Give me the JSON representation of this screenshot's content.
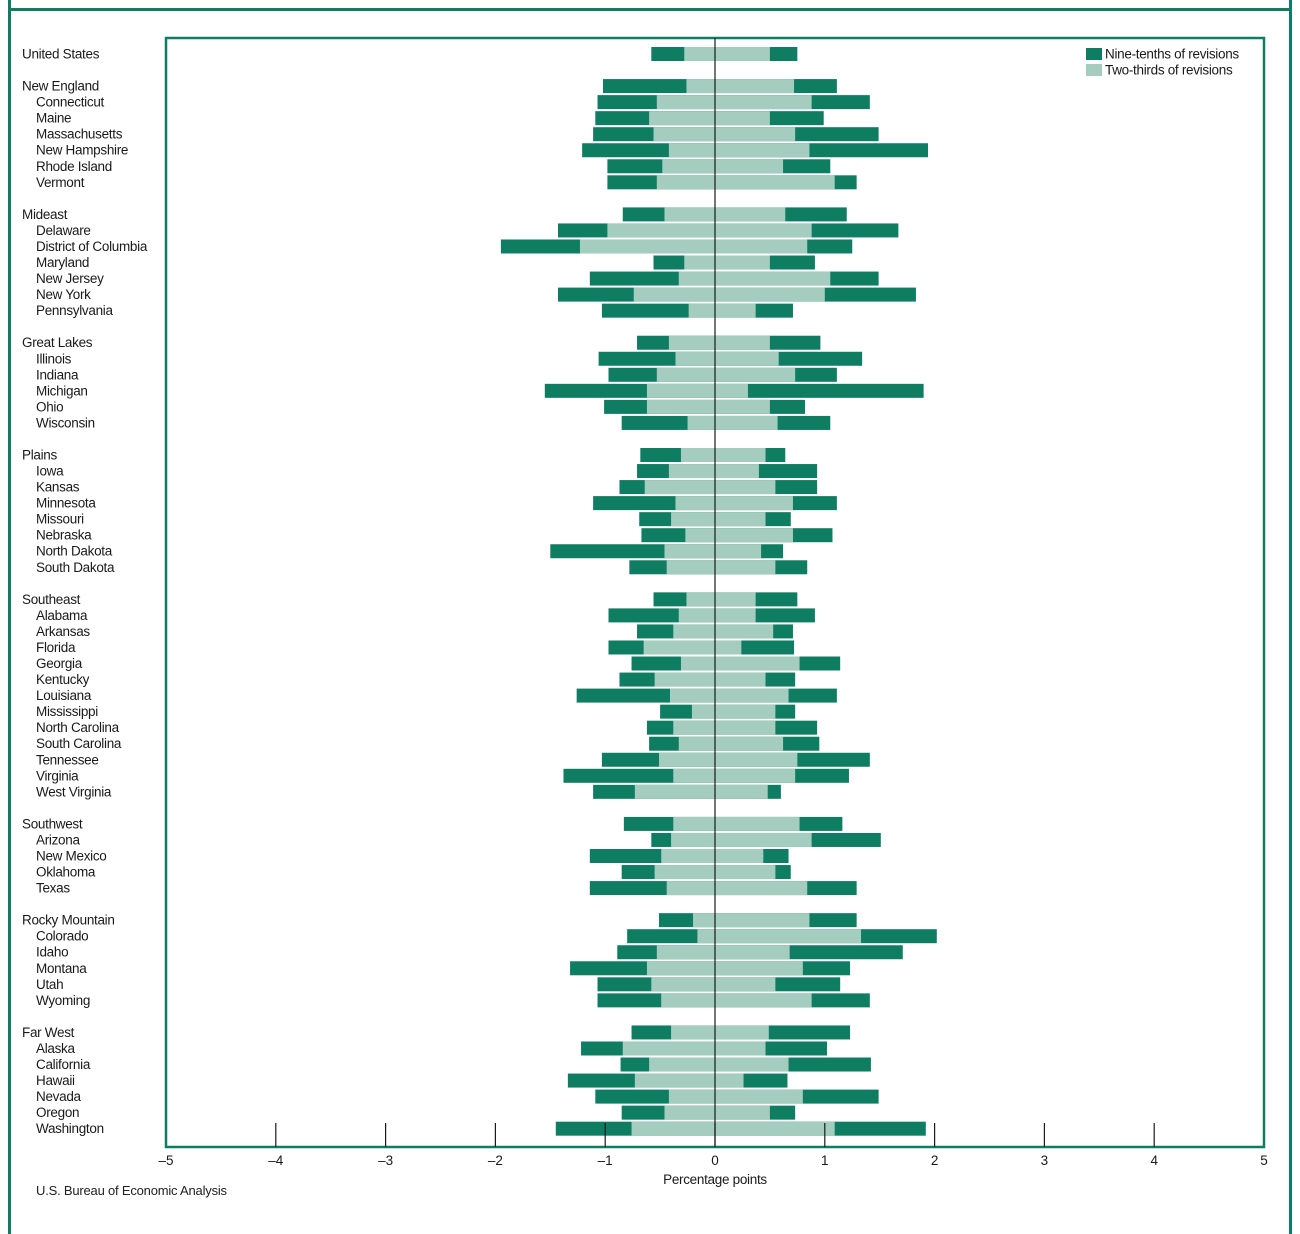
{
  "chart_data": {
    "type": "bar",
    "orientation": "horizontal",
    "stacked_symmetric": true,
    "xlabel": "Percentage points",
    "xlim": [
      -5,
      5
    ],
    "xticks": [
      -5,
      -4,
      -3,
      -2,
      -1,
      0,
      1,
      2,
      3,
      4,
      5
    ],
    "xtick_labels": [
      "–5",
      "–4",
      "–3",
      "–2",
      "–1",
      "0",
      "1",
      "2",
      "3",
      "4",
      "5"
    ],
    "legend_position": "top-right",
    "legend": [
      {
        "key": "nine_tenths",
        "label": "Nine-tenths of revisions",
        "color": "#0e7d62"
      },
      {
        "key": "two_thirds",
        "label": "Two-thirds of revisions",
        "color": "#a4cdbf"
      }
    ],
    "columns": [
      "label",
      "indent",
      "nine_tenths_low",
      "two_thirds_low",
      "two_thirds_high",
      "nine_tenths_high"
    ],
    "rows": [
      [
        "United States",
        0,
        -0.58,
        -0.28,
        0.5,
        0.75
      ],
      [
        "New England",
        0,
        -1.02,
        -0.26,
        0.72,
        1.11
      ],
      [
        "Connecticut",
        1,
        -1.07,
        -0.53,
        0.88,
        1.41
      ],
      [
        "Maine",
        1,
        -1.09,
        -0.6,
        0.5,
        0.99
      ],
      [
        "Massachusetts",
        1,
        -1.11,
        -0.56,
        0.73,
        1.49
      ],
      [
        "New Hampshire",
        1,
        -1.21,
        -0.42,
        0.86,
        1.94
      ],
      [
        "Rhode Island",
        1,
        -0.98,
        -0.48,
        0.62,
        1.05
      ],
      [
        "Vermont",
        1,
        -0.98,
        -0.53,
        1.09,
        1.29
      ],
      [
        "Mideast",
        0,
        -0.84,
        -0.46,
        0.64,
        1.2
      ],
      [
        "Delaware",
        1,
        -1.43,
        -0.98,
        0.88,
        1.67
      ],
      [
        "District of Columbia",
        1,
        -1.95,
        -1.23,
        0.84,
        1.25
      ],
      [
        "Maryland",
        1,
        -0.56,
        -0.28,
        0.5,
        0.91
      ],
      [
        "New Jersey",
        1,
        -1.14,
        -0.33,
        1.05,
        1.49
      ],
      [
        "New York",
        1,
        -1.43,
        -0.74,
        1.0,
        1.83
      ],
      [
        "Pennsylvania",
        1,
        -1.03,
        -0.24,
        0.37,
        0.71
      ],
      [
        "Great Lakes",
        0,
        -0.71,
        -0.42,
        0.5,
        0.96
      ],
      [
        "Illinois",
        1,
        -1.06,
        -0.36,
        0.58,
        1.34
      ],
      [
        "Indiana",
        1,
        -0.97,
        -0.53,
        0.73,
        1.11
      ],
      [
        "Michigan",
        1,
        -1.55,
        -0.62,
        0.3,
        1.9
      ],
      [
        "Ohio",
        1,
        -1.01,
        -0.62,
        0.5,
        0.82
      ],
      [
        "Wisconsin",
        1,
        -0.85,
        -0.25,
        0.57,
        1.05
      ],
      [
        "Plains",
        0,
        -0.68,
        -0.31,
        0.46,
        0.64
      ],
      [
        "Iowa",
        1,
        -0.71,
        -0.42,
        0.4,
        0.93
      ],
      [
        "Kansas",
        1,
        -0.87,
        -0.64,
        0.55,
        0.93
      ],
      [
        "Minnesota",
        1,
        -1.11,
        -0.36,
        0.71,
        1.11
      ],
      [
        "Missouri",
        1,
        -0.69,
        -0.4,
        0.46,
        0.69
      ],
      [
        "Nebraska",
        1,
        -0.67,
        -0.27,
        0.71,
        1.07
      ],
      [
        "North Dakota",
        1,
        -1.5,
        -0.46,
        0.42,
        0.62
      ],
      [
        "South Dakota",
        1,
        -0.78,
        -0.44,
        0.55,
        0.84
      ],
      [
        "Southeast",
        0,
        -0.56,
        -0.26,
        0.37,
        0.75
      ],
      [
        "Alabama",
        1,
        -0.97,
        -0.33,
        0.37,
        0.91
      ],
      [
        "Arkansas",
        1,
        -0.71,
        -0.38,
        0.53,
        0.71
      ],
      [
        "Florida",
        1,
        -0.97,
        -0.65,
        0.24,
        0.72
      ],
      [
        "Georgia",
        1,
        -0.76,
        -0.31,
        0.77,
        1.14
      ],
      [
        "Kentucky",
        1,
        -0.87,
        -0.55,
        0.46,
        0.73
      ],
      [
        "Louisiana",
        1,
        -1.26,
        -0.41,
        0.67,
        1.11
      ],
      [
        "Mississippi",
        1,
        -0.5,
        -0.21,
        0.55,
        0.73
      ],
      [
        "North Carolina",
        1,
        -0.62,
        -0.38,
        0.55,
        0.93
      ],
      [
        "South Carolina",
        1,
        -0.6,
        -0.33,
        0.62,
        0.95
      ],
      [
        "Tennessee",
        1,
        -1.03,
        -0.51,
        0.75,
        1.41
      ],
      [
        "Virginia",
        1,
        -1.38,
        -0.38,
        0.73,
        1.22
      ],
      [
        "West Virginia",
        1,
        -1.11,
        -0.73,
        0.48,
        0.6
      ],
      [
        "Southwest",
        0,
        -0.83,
        -0.38,
        0.77,
        1.16
      ],
      [
        "Arizona",
        1,
        -0.58,
        -0.4,
        0.88,
        1.51
      ],
      [
        "New Mexico",
        1,
        -1.14,
        -0.49,
        0.44,
        0.67
      ],
      [
        "Oklahoma",
        1,
        -0.85,
        -0.55,
        0.55,
        0.69
      ],
      [
        "Texas",
        1,
        -1.14,
        -0.44,
        0.84,
        1.29
      ],
      [
        "Rocky Mountain",
        0,
        -0.51,
        -0.2,
        0.86,
        1.29
      ],
      [
        "Colorado",
        1,
        -0.8,
        -0.16,
        1.33,
        2.02
      ],
      [
        "Idaho",
        1,
        -0.89,
        -0.53,
        0.68,
        1.71
      ],
      [
        "Montana",
        1,
        -1.32,
        -0.62,
        0.8,
        1.23
      ],
      [
        "Utah",
        1,
        -1.07,
        -0.58,
        0.55,
        1.14
      ],
      [
        "Wyoming",
        1,
        -1.07,
        -0.49,
        0.88,
        1.41
      ],
      [
        "Far West",
        0,
        -0.76,
        -0.4,
        0.49,
        1.23
      ],
      [
        "Alaska",
        1,
        -1.22,
        -0.84,
        0.46,
        1.02
      ],
      [
        "California",
        1,
        -0.86,
        -0.6,
        0.67,
        1.42
      ],
      [
        "Hawaii",
        1,
        -1.34,
        -0.73,
        0.26,
        0.66
      ],
      [
        "Nevada",
        1,
        -1.09,
        -0.42,
        0.8,
        1.49
      ],
      [
        "Oregon",
        1,
        -0.85,
        -0.46,
        0.5,
        0.73
      ],
      [
        "Washington",
        1,
        -1.45,
        -0.76,
        1.09,
        1.92
      ]
    ]
  },
  "footer": {
    "source": "U.S. Bureau of Economic Analysis"
  }
}
